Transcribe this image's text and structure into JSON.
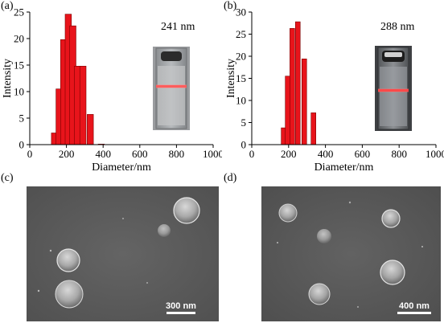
{
  "panels": {
    "a": {
      "label": "(a)",
      "size_text": "241 nm"
    },
    "b": {
      "label": "(b)",
      "size_text": "288 nm"
    },
    "c": {
      "label": "(c)",
      "scale_text": "300 nm"
    },
    "d": {
      "label": "(d)",
      "scale_text": "400 nm"
    }
  },
  "colors": {
    "bar": "#e8141b",
    "bar_edge": "#7a0000",
    "sem_bg": "#5c5c5c",
    "laser": "#ff4040"
  },
  "chart_data": [
    {
      "type": "bar",
      "panel": "a",
      "xlabel": "Diameter/nm",
      "ylabel": "Intensity",
      "xlim": [
        0,
        1000
      ],
      "ylim": [
        0,
        25
      ],
      "xticks": [
        0,
        200,
        400,
        600,
        800,
        1000
      ],
      "yticks": [
        0,
        5,
        10,
        15,
        20,
        25
      ],
      "bin_width": 34,
      "x": [
        135,
        160,
        185,
        210,
        235,
        260,
        290,
        330,
        390
      ],
      "values": [
        2.2,
        10.5,
        19.8,
        24.6,
        22.4,
        14.8,
        14.8,
        5.7,
        0.1
      ]
    },
    {
      "type": "bar",
      "panel": "b",
      "xlabel": "Diameter/nm",
      "ylabel": "Intensity",
      "xlim": [
        0,
        1000
      ],
      "ylim": [
        0,
        30
      ],
      "xticks": [
        0,
        200,
        400,
        600,
        800,
        1000
      ],
      "yticks": [
        0,
        5,
        10,
        15,
        20,
        25,
        30
      ],
      "bin_width": 26,
      "x": [
        173,
        195,
        220,
        250,
        285,
        335
      ],
      "values": [
        3.8,
        15.5,
        26.3,
        27.8,
        19.4,
        7.2
      ]
    }
  ]
}
